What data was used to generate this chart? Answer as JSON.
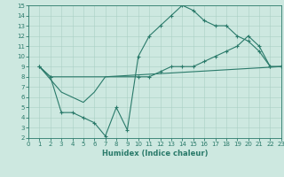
{
  "xlabel": "Humidex (Indice chaleur)",
  "xlim": [
    0,
    23
  ],
  "ylim": [
    2,
    15
  ],
  "xticks": [
    0,
    1,
    2,
    3,
    4,
    5,
    6,
    7,
    8,
    9,
    10,
    11,
    12,
    13,
    14,
    15,
    16,
    17,
    18,
    19,
    20,
    21,
    22,
    23
  ],
  "yticks": [
    2,
    3,
    4,
    5,
    6,
    7,
    8,
    9,
    10,
    11,
    12,
    13,
    14,
    15
  ],
  "line_color": "#2a7a6a",
  "bg_color": "#cde8e0",
  "grid_color": "#aacfc5",
  "line1_x": [
    1,
    2,
    3,
    4,
    5,
    6,
    7,
    8,
    9,
    10,
    11,
    12,
    13,
    14,
    15,
    16,
    17,
    18,
    19,
    20,
    21,
    22,
    23
  ],
  "line1_y": [
    9,
    8,
    4.5,
    4.5,
    4,
    3.5,
    2.2,
    5.0,
    2.8,
    10,
    12,
    13,
    14,
    15,
    14.5,
    13.5,
    13,
    13,
    12,
    11.5,
    10.5,
    9,
    9
  ],
  "line2_x": [
    1,
    2,
    10,
    11,
    12,
    13,
    14,
    15,
    16,
    17,
    18,
    19,
    20,
    21,
    22,
    23
  ],
  "line2_y": [
    9,
    8,
    8,
    8,
    8.5,
    9,
    9,
    9,
    9.5,
    10,
    10.5,
    11,
    12,
    11,
    9,
    9
  ],
  "line3_x": [
    1,
    3,
    4,
    5,
    6,
    7,
    23
  ],
  "line3_y": [
    9,
    6.5,
    6,
    5.5,
    6.5,
    8,
    9
  ],
  "xlabel_fontsize": 6,
  "tick_fontsize": 5
}
